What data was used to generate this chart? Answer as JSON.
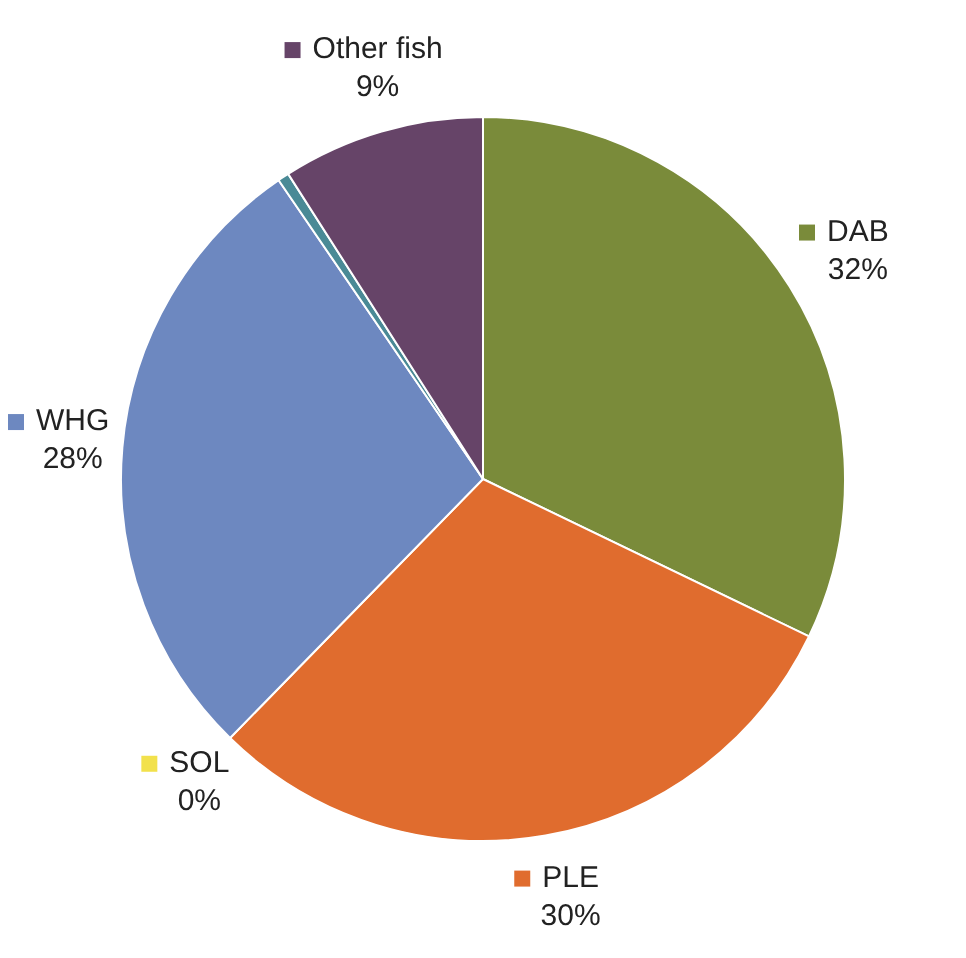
{
  "chart_data": {
    "type": "pie",
    "categories": [
      "DAB",
      "PLE",
      "SOL",
      "WHG",
      null,
      "Other fish"
    ],
    "values": [
      32,
      30,
      0,
      28,
      0.5,
      9
    ],
    "value_labels": [
      "32%",
      "30%",
      "0%",
      "28%",
      null,
      "9%"
    ],
    "colors": [
      "#7a8b3a",
      "#e06c2e",
      "#f2e14c",
      "#6d88c0",
      "#4a8a96",
      "#664468"
    ],
    "legend": "top left"
  }
}
